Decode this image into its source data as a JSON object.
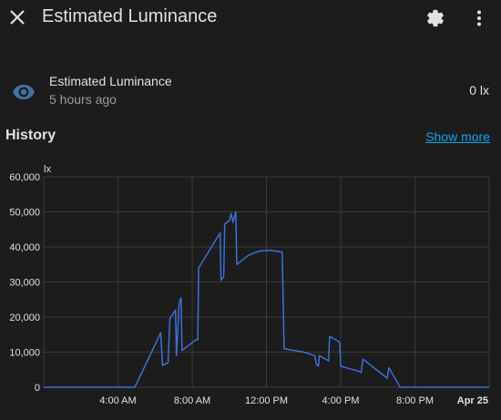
{
  "header": {
    "title": "Estimated Luminance",
    "close_icon": "close-icon",
    "settings_icon": "gear-icon",
    "menu_icon": "dots-vertical-icon"
  },
  "entity": {
    "icon": "eye-icon",
    "name": "Estimated Luminance",
    "last_changed": "5 hours ago",
    "state": "0 lx"
  },
  "history": {
    "title": "History",
    "show_more": "Show more"
  },
  "colors": {
    "background": "#1c1c1c",
    "accent": "#03a9f4",
    "line": "#3d6fd6",
    "icon": "#44739e"
  },
  "chart_data": {
    "type": "line",
    "ylabel": "lx",
    "ylim": [
      0,
      60000
    ],
    "yticks": [
      "0",
      "10,000",
      "20,000",
      "30,000",
      "40,000",
      "50,000",
      "60,000"
    ],
    "xlim": [
      0,
      24
    ],
    "xticks": [
      {
        "x": 4,
        "label": "4:00 AM"
      },
      {
        "x": 8,
        "label": "8:00 AM"
      },
      {
        "x": 12,
        "label": "12:00 PM"
      },
      {
        "x": 16,
        "label": "4:00 PM"
      },
      {
        "x": 20,
        "label": "8:00 PM"
      },
      {
        "x": 24,
        "label": "Apr 25"
      }
    ],
    "grid": true,
    "series": [
      {
        "points": [
          [
            0,
            0
          ],
          [
            4.9,
            0
          ],
          [
            5.0,
            1000
          ],
          [
            6.3,
            15500
          ],
          [
            6.4,
            6200
          ],
          [
            6.7,
            7000
          ],
          [
            6.8,
            19500
          ],
          [
            7.1,
            22000
          ],
          [
            7.15,
            9000
          ],
          [
            7.3,
            24000
          ],
          [
            7.4,
            25500
          ],
          [
            7.45,
            10500
          ],
          [
            8.2,
            13500
          ],
          [
            8.3,
            13500
          ],
          [
            8.35,
            34000
          ],
          [
            9.5,
            44000
          ],
          [
            9.55,
            30500
          ],
          [
            9.7,
            31500
          ],
          [
            9.75,
            46500
          ],
          [
            10.0,
            47500
          ],
          [
            10.1,
            49500
          ],
          [
            10.2,
            47000
          ],
          [
            10.35,
            50000
          ],
          [
            10.4,
            35000
          ],
          [
            11.0,
            37500
          ],
          [
            11.6,
            38800
          ],
          [
            12.2,
            39000
          ],
          [
            12.85,
            38500
          ],
          [
            12.95,
            11000
          ],
          [
            14.0,
            10000
          ],
          [
            14.6,
            9000
          ],
          [
            14.7,
            6500
          ],
          [
            14.8,
            6000
          ],
          [
            14.85,
            9000
          ],
          [
            15.35,
            7500
          ],
          [
            15.4,
            14500
          ],
          [
            15.9,
            13000
          ],
          [
            15.95,
            12500
          ],
          [
            16.0,
            6000
          ],
          [
            17.0,
            4500
          ],
          [
            17.1,
            4200
          ],
          [
            17.2,
            8000
          ],
          [
            18.4,
            3000
          ],
          [
            18.5,
            2500
          ],
          [
            18.6,
            5500
          ],
          [
            19.2,
            0
          ],
          [
            24,
            0
          ]
        ]
      }
    ]
  }
}
